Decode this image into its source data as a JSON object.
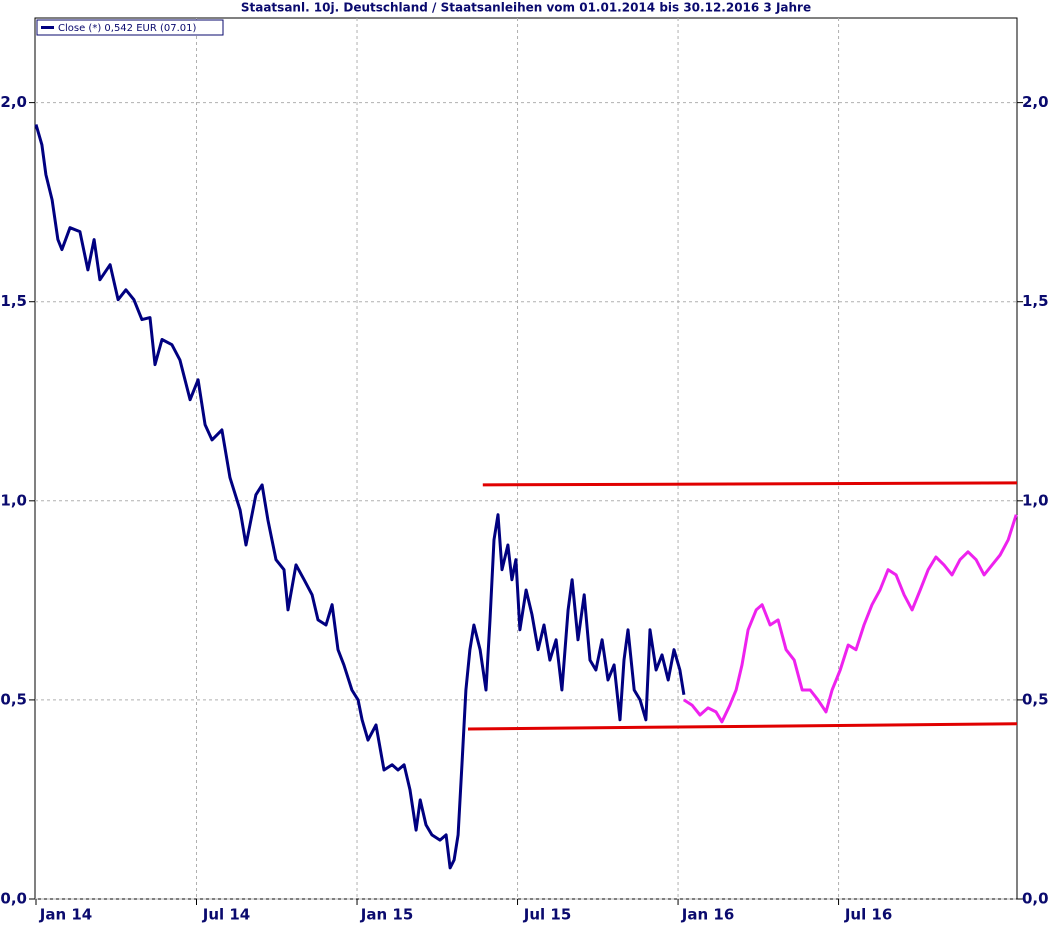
{
  "chart_data": {
    "type": "line",
    "title": "Staatsanl. 10j. Deutschland / Staatsanleihen vom 01.01.2014 bis 30.12.2016 3 Jahre",
    "xlim": [
      0,
      36.67
    ],
    "xticks": [
      {
        "value": 0,
        "label": "Jan 14"
      },
      {
        "value": 6,
        "label": "Jul 14"
      },
      {
        "value": 12,
        "label": "Jan 15"
      },
      {
        "value": 18,
        "label": "Jul 15"
      },
      {
        "value": 24,
        "label": "Jan 16"
      },
      {
        "value": 30,
        "label": "Jul 16"
      }
    ],
    "ylim": [
      0,
      2.21
    ],
    "yticks": [
      {
        "value": 0,
        "label": "0,0"
      },
      {
        "value": 0.5,
        "label": "0,5"
      },
      {
        "value": 1,
        "label": "1,0"
      },
      {
        "value": 1.5,
        "label": "1,5"
      },
      {
        "value": 2,
        "label": "2,0"
      }
    ],
    "grid": true,
    "legend": "upper left",
    "series": [
      {
        "name": "Close (*) 0,542 EUR (07.01)",
        "color": "#000080",
        "x": [
          0,
          0.22,
          0.37,
          0.6,
          0.82,
          0.97,
          1.27,
          1.64,
          1.94,
          2.17,
          2.39,
          2.77,
          3.07,
          3.36,
          3.66,
          3.96,
          4.26,
          4.45,
          4.71,
          5.08,
          5.38,
          5.76,
          6.06,
          6.32,
          6.58,
          6.95,
          7.25,
          7.63,
          7.85,
          8.22,
          8.45,
          8.67,
          8.97,
          9.27,
          9.42,
          9.72,
          10.02,
          10.32,
          10.54,
          10.84,
          11.07,
          11.29,
          11.51,
          11.81,
          12.04,
          12.19,
          12.41,
          12.71,
          13.01,
          13.31,
          13.53,
          13.76,
          13.98,
          14.21,
          14.36,
          14.58,
          14.8,
          15.1,
          15.33,
          15.48,
          15.63,
          15.78,
          15.93,
          16.07,
          16.22,
          16.37,
          16.6,
          16.82,
          16.97,
          17.12,
          17.27,
          17.42,
          17.64,
          17.79,
          17.94,
          18.09,
          18.32,
          18.54,
          18.77,
          18.99,
          19.21,
          19.44,
          19.66,
          19.89,
          20.04,
          20.26,
          20.49,
          20.71,
          20.93,
          21.16,
          21.38,
          21.61,
          21.83,
          21.98,
          22.13,
          22.36,
          22.58,
          22.8,
          22.95,
          23.18,
          23.4,
          23.63,
          23.85,
          24.07,
          24.22
        ],
        "values": [
          1.945,
          1.894,
          1.819,
          1.756,
          1.656,
          1.631,
          1.686,
          1.676,
          1.58,
          1.656,
          1.555,
          1.593,
          1.505,
          1.53,
          1.505,
          1.455,
          1.46,
          1.342,
          1.405,
          1.392,
          1.354,
          1.254,
          1.304,
          1.191,
          1.153,
          1.178,
          1.058,
          0.977,
          0.889,
          1.015,
          1.04,
          0.952,
          0.852,
          0.827,
          0.726,
          0.839,
          0.802,
          0.764,
          0.701,
          0.688,
          0.739,
          0.626,
          0.588,
          0.525,
          0.5,
          0.45,
          0.399,
          0.437,
          0.324,
          0.337,
          0.324,
          0.337,
          0.274,
          0.173,
          0.249,
          0.186,
          0.161,
          0.148,
          0.161,
          0.078,
          0.098,
          0.161,
          0.349,
          0.525,
          0.626,
          0.688,
          0.626,
          0.525,
          0.701,
          0.902,
          0.965,
          0.827,
          0.889,
          0.802,
          0.852,
          0.676,
          0.776,
          0.714,
          0.626,
          0.688,
          0.6,
          0.651,
          0.525,
          0.726,
          0.802,
          0.651,
          0.764,
          0.6,
          0.575,
          0.651,
          0.55,
          0.588,
          0.45,
          0.6,
          0.676,
          0.525,
          0.5,
          0.45,
          0.676,
          0.575,
          0.613,
          0.55,
          0.626,
          0.575,
          0.513
        ]
      },
      {
        "color": "#ee22ee",
        "x": [
          24.22,
          24.52,
          24.82,
          25.12,
          25.42,
          25.64,
          25.94,
          26.17,
          26.39,
          26.62,
          26.92,
          27.14,
          27.44,
          27.74,
          28.04,
          28.34,
          28.64,
          28.94,
          29.23,
          29.53,
          29.76,
          30.06,
          30.36,
          30.65,
          30.95,
          31.25,
          31.55,
          31.85,
          32.15,
          32.45,
          32.75,
          33.05,
          33.35,
          33.64,
          33.94,
          34.24,
          34.54,
          34.84,
          35.14,
          35.44,
          35.74,
          36.04,
          36.34,
          36.64
        ],
        "values": [
          0.5,
          0.487,
          0.462,
          0.48,
          0.47,
          0.445,
          0.487,
          0.525,
          0.588,
          0.676,
          0.726,
          0.739,
          0.688,
          0.701,
          0.626,
          0.6,
          0.525,
          0.525,
          0.5,
          0.47,
          0.525,
          0.575,
          0.638,
          0.626,
          0.688,
          0.739,
          0.776,
          0.827,
          0.814,
          0.764,
          0.726,
          0.776,
          0.827,
          0.859,
          0.839,
          0.814,
          0.852,
          0.872,
          0.852,
          0.814,
          0.839,
          0.864,
          0.902,
          0.965
        ]
      },
      {
        "color": "#e00000",
        "x": [
          16.7,
          36.67
        ],
        "values": [
          1.04,
          1.045
        ]
      },
      {
        "color": "#e00000",
        "x": [
          16.15,
          36.67
        ],
        "values": [
          0.427,
          0.44
        ]
      }
    ]
  }
}
